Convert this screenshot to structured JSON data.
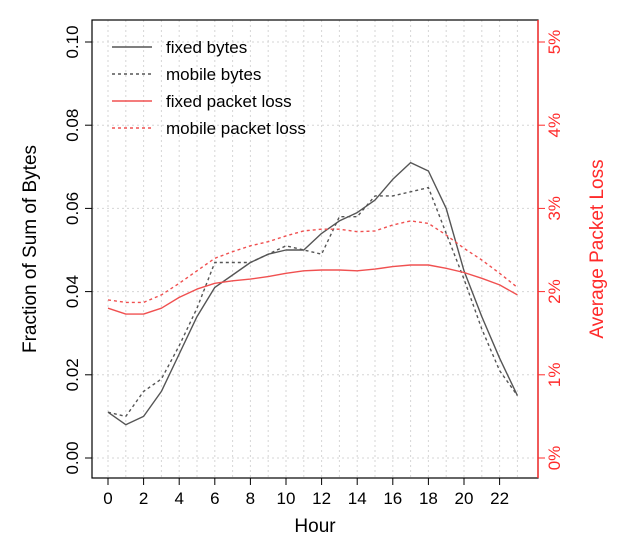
{
  "chart_data": {
    "type": "line",
    "xlabel": "Hour",
    "ylabel_left": "Fraction of Sum of Bytes",
    "ylabel_right": "Average Packet Loss",
    "x": [
      0,
      1,
      2,
      3,
      4,
      5,
      6,
      7,
      8,
      9,
      10,
      11,
      12,
      13,
      14,
      15,
      16,
      17,
      18,
      19,
      20,
      21,
      22,
      23
    ],
    "x_ticks": [
      0,
      2,
      4,
      6,
      8,
      10,
      12,
      14,
      16,
      18,
      20,
      22
    ],
    "x_tick_labels": [
      "0",
      "2",
      "4",
      "6",
      "8",
      "10",
      "12",
      "14",
      "16",
      "18",
      "20",
      "22"
    ],
    "ylim_left": [
      0,
      0.1
    ],
    "y_left_ticks": [
      0,
      0.02,
      0.04,
      0.06,
      0.08,
      0.1
    ],
    "y_left_tick_labels": [
      "0.00",
      "0.02",
      "0.04",
      "0.06",
      "0.08",
      "0.10"
    ],
    "ylim_right": [
      0,
      5
    ],
    "y_right_ticks": [
      0,
      1,
      2,
      3,
      4,
      5
    ],
    "y_right_tick_labels": [
      "0%",
      "1%",
      "2%",
      "3%",
      "4%",
      "5%"
    ],
    "grid": true,
    "legend_position": "top-left",
    "colors": {
      "bytes": "#555555",
      "loss": "#f05050",
      "axis_right": "#ff2a2a"
    },
    "series": [
      {
        "name": "fixed bytes",
        "axis": "left",
        "style": "solid",
        "values": [
          0.011,
          0.008,
          0.01,
          0.016,
          0.025,
          0.034,
          0.041,
          0.044,
          0.047,
          0.049,
          0.05,
          0.05,
          0.054,
          0.057,
          0.059,
          0.062,
          0.067,
          0.071,
          0.069,
          0.06,
          0.045,
          0.034,
          0.024,
          0.015
        ]
      },
      {
        "name": "mobile bytes",
        "axis": "left",
        "style": "dashed",
        "values": [
          0.011,
          0.01,
          0.016,
          0.019,
          0.027,
          0.036,
          0.047,
          0.047,
          0.047,
          0.049,
          0.051,
          0.05,
          0.049,
          0.058,
          0.058,
          0.063,
          0.063,
          0.064,
          0.065,
          0.054,
          0.043,
          0.031,
          0.021,
          0.015
        ]
      },
      {
        "name": "fixed packet loss",
        "axis": "right",
        "style": "solid",
        "values": [
          1.8,
          1.73,
          1.73,
          1.8,
          1.93,
          2.03,
          2.1,
          2.13,
          2.15,
          2.18,
          2.22,
          2.25,
          2.26,
          2.26,
          2.25,
          2.27,
          2.3,
          2.32,
          2.32,
          2.28,
          2.23,
          2.16,
          2.08,
          1.96
        ]
      },
      {
        "name": "mobile packet loss",
        "axis": "right",
        "style": "dashed",
        "values": [
          1.9,
          1.87,
          1.87,
          1.96,
          2.1,
          2.25,
          2.4,
          2.48,
          2.55,
          2.6,
          2.67,
          2.73,
          2.75,
          2.75,
          2.72,
          2.73,
          2.8,
          2.85,
          2.82,
          2.68,
          2.52,
          2.38,
          2.22,
          2.05
        ]
      }
    ]
  }
}
